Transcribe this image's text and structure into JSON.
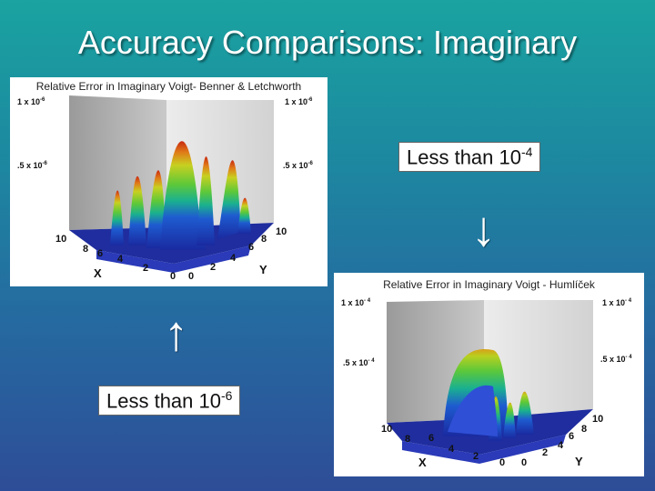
{
  "slide_title": "Accuracy Comparisons: Imaginary",
  "panel_top": {
    "title": "Relative Error in Imaginary Voigt- Benner & Letchworth",
    "z_top_left": "1 x 10",
    "z_top_left_exp": "-6",
    "z_top_right": "1 x 10",
    "z_top_right_exp": "-6",
    "z_mid_left": ".5 x 10",
    "z_mid_left_exp": "-6",
    "z_mid_right": ".5 x 10",
    "z_mid_right_exp": "-6",
    "x_ticks": [
      "10",
      "8",
      "6",
      "4",
      "2",
      "0"
    ],
    "y_ticks": [
      "0",
      "2",
      "4",
      "6",
      "8",
      "10"
    ],
    "x_name": "X",
    "y_name": "Y"
  },
  "panel_bottom": {
    "title": "Relative Error in Imaginary Voigt - Humlíček",
    "z_top_left": "1 x 10",
    "z_top_left_exp": "- 4",
    "z_top_right": "1 x 10",
    "z_top_right_exp": "- 4",
    "z_mid_left": ".5 x 10",
    "z_mid_left_exp": "- 4",
    "z_mid_right": ".5 x 10",
    "z_mid_right_exp": "- 4",
    "x_ticks": [
      "10",
      "8",
      "6",
      "4",
      "2",
      "0"
    ],
    "y_ticks": [
      "0",
      "2",
      "4",
      "6",
      "8",
      "10"
    ],
    "x_name": "X",
    "y_name": "Y"
  },
  "note_right": {
    "text": "Less than 10",
    "exp": "-4"
  },
  "note_left": {
    "text": "Less than 10",
    "exp": "-6"
  },
  "arrow_down": "↓",
  "arrow_up": "↑"
}
